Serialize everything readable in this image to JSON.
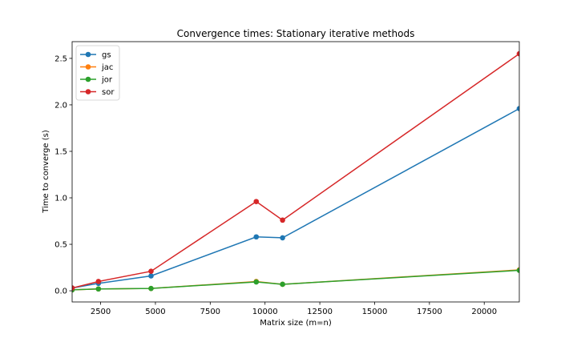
{
  "chart_data": {
    "type": "line",
    "title": "Convergence times: Stationary iterative methods",
    "xlabel": "Matrix size (m=n)",
    "ylabel": "Time to converge (s)",
    "xlim": [
      1200,
      21600
    ],
    "ylim": [
      -0.12,
      2.68
    ],
    "xticks": [
      2500,
      5000,
      7500,
      10000,
      12500,
      15000,
      17500,
      20000
    ],
    "yticks": [
      0.0,
      0.5,
      1.0,
      1.5,
      2.0,
      2.5
    ],
    "xtick_labels": [
      "2500",
      "5000",
      "7500",
      "10000",
      "12500",
      "15000",
      "17500",
      "20000"
    ],
    "ytick_labels": [
      "0.0",
      "0.5",
      "1.0",
      "1.5",
      "2.0",
      "2.5"
    ],
    "grid": false,
    "legend_position": "top-left",
    "x": [
      1200,
      2400,
      4800,
      9600,
      10800,
      21600
    ],
    "series": [
      {
        "name": "gs",
        "color": "#1f77b4",
        "values": [
          0.03,
          0.08,
          0.16,
          0.58,
          0.57,
          1.96
        ]
      },
      {
        "name": "jac",
        "color": "#ff7f0e",
        "values": [
          0.01,
          0.02,
          0.025,
          0.1,
          0.07,
          0.225
        ]
      },
      {
        "name": "jor",
        "color": "#2ca02c",
        "values": [
          0.01,
          0.02,
          0.025,
          0.095,
          0.07,
          0.22
        ]
      },
      {
        "name": "sor",
        "color": "#d62728",
        "values": [
          0.03,
          0.1,
          0.21,
          0.96,
          0.76,
          2.55
        ]
      }
    ]
  }
}
